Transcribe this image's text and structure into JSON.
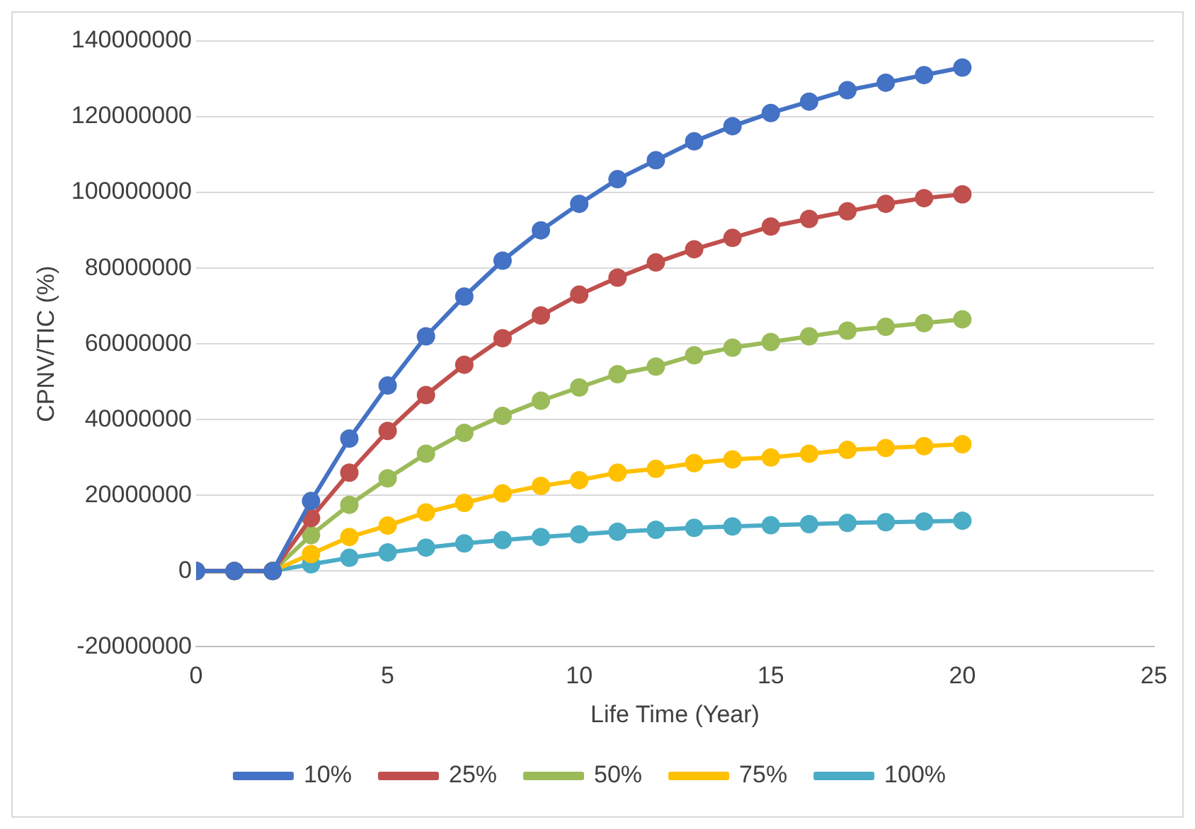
{
  "chart_data": {
    "type": "line",
    "xlabel": "Life Time (Year)",
    "ylabel": "CPNV/TIC (%)",
    "x": [
      0,
      1,
      2,
      3,
      4,
      5,
      6,
      7,
      8,
      9,
      10,
      11,
      12,
      13,
      14,
      15,
      16,
      17,
      18,
      19,
      20
    ],
    "xlim": [
      0,
      25
    ],
    "xticks": [
      0,
      5,
      10,
      15,
      20,
      25
    ],
    "ylim": [
      -20000000,
      140000000
    ],
    "yticks": [
      -20000000,
      0,
      20000000,
      40000000,
      60000000,
      80000000,
      100000000,
      120000000,
      140000000
    ],
    "grid": "y",
    "legend": "bottom",
    "marker": "circle",
    "series": [
      {
        "name": "10%",
        "color": "#4472c4",
        "values": [
          0,
          0,
          0,
          18500000,
          35000000,
          49000000,
          62000000,
          72500000,
          82000000,
          90000000,
          97000000,
          103500000,
          108500000,
          113500000,
          117500000,
          121000000,
          124000000,
          127000000,
          129000000,
          131000000,
          133000000
        ]
      },
      {
        "name": "25%",
        "color": "#c0504d",
        "values": [
          0,
          0,
          0,
          14000000,
          26000000,
          37000000,
          46500000,
          54500000,
          61500000,
          67500000,
          73000000,
          77500000,
          81500000,
          85000000,
          88000000,
          91000000,
          93000000,
          95000000,
          97000000,
          98500000,
          99500000
        ]
      },
      {
        "name": "50%",
        "color": "#9bbb59",
        "values": [
          0,
          0,
          0,
          9500000,
          17500000,
          24500000,
          31000000,
          36500000,
          41000000,
          45000000,
          48500000,
          52000000,
          54000000,
          57000000,
          59000000,
          60500000,
          62000000,
          63500000,
          64500000,
          65500000,
          66500000
        ]
      },
      {
        "name": "75%",
        "color": "#ffc000",
        "values": [
          0,
          0,
          0,
          4500000,
          9000000,
          12000000,
          15500000,
          18000000,
          20500000,
          22500000,
          24000000,
          26000000,
          27000000,
          28500000,
          29500000,
          30000000,
          31000000,
          32000000,
          32500000,
          33000000,
          33500000
        ]
      },
      {
        "name": "100%",
        "color": "#4bacc6",
        "values": [
          0,
          0,
          0,
          1800000,
          3500000,
          4900000,
          6200000,
          7300000,
          8200000,
          9000000,
          9700000,
          10400000,
          10900000,
          11400000,
          11800000,
          12100000,
          12400000,
          12700000,
          12900000,
          13100000,
          13300000
        ]
      }
    ]
  }
}
